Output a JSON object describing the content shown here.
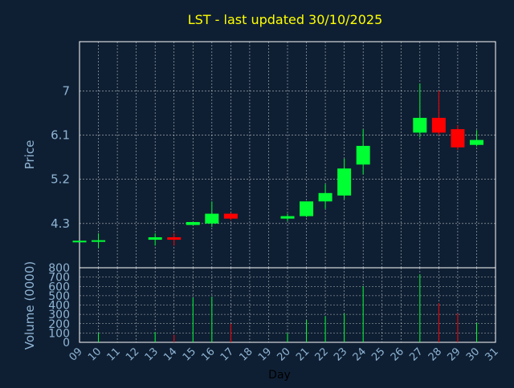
{
  "chart_data": {
    "type": "candlestick",
    "title": "LST - last updated 30/10/2025",
    "xlabel": "Day",
    "ylabel": "Price",
    "volume_label": "Volume (0000)",
    "x_ticks": [
      "09",
      "10",
      "11",
      "12",
      "13",
      "14",
      "15",
      "16",
      "17",
      "18",
      "19",
      "20",
      "21",
      "22",
      "23",
      "24",
      "25",
      "26",
      "27",
      "28",
      "29",
      "30",
      "31"
    ],
    "y_ticks": [
      4.3,
      5.2,
      6.1,
      7
    ],
    "y_tick_labels": [
      "4.3",
      "5.2",
      "6.1",
      "7"
    ],
    "ylim": [
      3.4,
      8.0
    ],
    "volume_ticks": [
      0,
      100,
      200,
      300,
      400,
      500,
      600,
      700,
      800
    ],
    "volume_ylim": [
      0,
      800
    ],
    "grid": true,
    "colors": {
      "background": "#0f1f33",
      "axis": "#ffffff",
      "grid": "#ffffff",
      "title": "#ffff00",
      "label": "#8fb5d5",
      "up": "#00ff33",
      "down": "#ff0000"
    },
    "candles": [
      {
        "day": 9,
        "open": 3.95,
        "high": 3.95,
        "low": 3.95,
        "close": 3.95,
        "volume": 0
      },
      {
        "day": 10,
        "open": 3.95,
        "high": 4.1,
        "low": 3.8,
        "close": 3.96,
        "volume": 100
      },
      {
        "day": 13,
        "open": 3.97,
        "high": 4.1,
        "low": 3.85,
        "close": 4.02,
        "volume": 110
      },
      {
        "day": 14,
        "open": 4.02,
        "high": 4.1,
        "low": 3.85,
        "close": 3.97,
        "volume": 80
      },
      {
        "day": 15,
        "open": 4.27,
        "high": 4.33,
        "low": 4.27,
        "close": 4.33,
        "volume": 480
      },
      {
        "day": 16,
        "open": 4.3,
        "high": 4.75,
        "low": 4.23,
        "close": 4.5,
        "volume": 490
      },
      {
        "day": 17,
        "open": 4.5,
        "high": 4.52,
        "low": 4.37,
        "close": 4.4,
        "volume": 200
      },
      {
        "day": 20,
        "open": 4.4,
        "high": 4.5,
        "low": 4.35,
        "close": 4.45,
        "volume": 100
      },
      {
        "day": 21,
        "open": 4.45,
        "high": 4.75,
        "low": 4.43,
        "close": 4.75,
        "volume": 240
      },
      {
        "day": 22,
        "open": 4.75,
        "high": 5.1,
        "low": 4.6,
        "close": 4.92,
        "volume": 280
      },
      {
        "day": 23,
        "open": 4.87,
        "high": 5.62,
        "low": 4.8,
        "close": 5.42,
        "volume": 310
      },
      {
        "day": 24,
        "open": 5.5,
        "high": 6.22,
        "low": 5.3,
        "close": 5.88,
        "volume": 600
      },
      {
        "day": 27,
        "open": 6.15,
        "high": 7.15,
        "low": 6.05,
        "close": 6.45,
        "volume": 730
      },
      {
        "day": 28,
        "open": 6.45,
        "high": 7.0,
        "low": 6.1,
        "close": 6.15,
        "volume": 420
      },
      {
        "day": 29,
        "open": 6.22,
        "high": 6.3,
        "low": 5.8,
        "close": 5.85,
        "volume": 310
      },
      {
        "day": 30,
        "open": 5.9,
        "high": 6.2,
        "low": 5.87,
        "close": 6.0,
        "volume": 210
      }
    ]
  }
}
